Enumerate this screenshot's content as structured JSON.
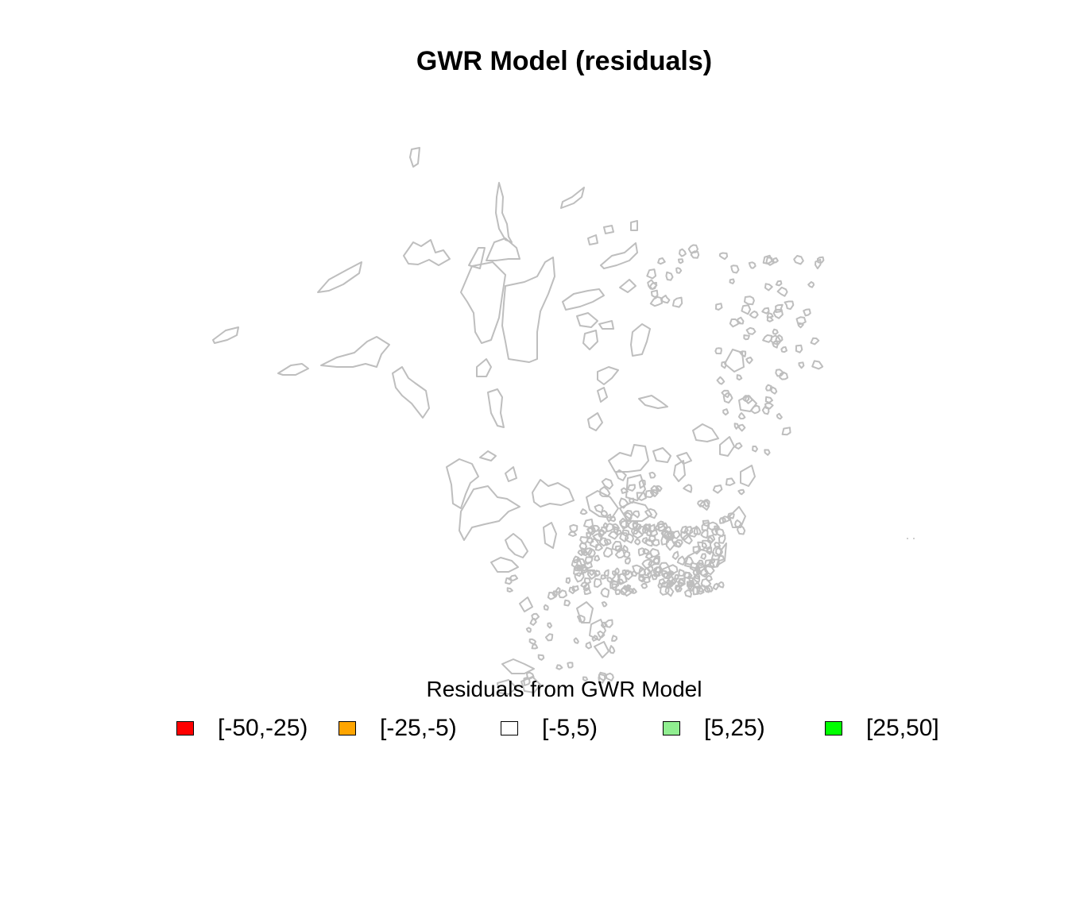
{
  "map": {
    "title": "GWR Model (residuals)",
    "outline_color": "#bebebe",
    "background_color": "#ffffff"
  },
  "legend": {
    "title": "Residuals from GWR Model",
    "items": [
      {
        "label": "[-50,-25)",
        "color": "#ff0000"
      },
      {
        "label": "[-25,-5)",
        "color": "#ffa500"
      },
      {
        "label": "[-5,5)",
        "color": "#ffffff"
      },
      {
        "label": "[5,25)",
        "color": "#90ee90"
      },
      {
        "label": "[25,50]",
        "color": "#00ff00"
      }
    ]
  }
}
